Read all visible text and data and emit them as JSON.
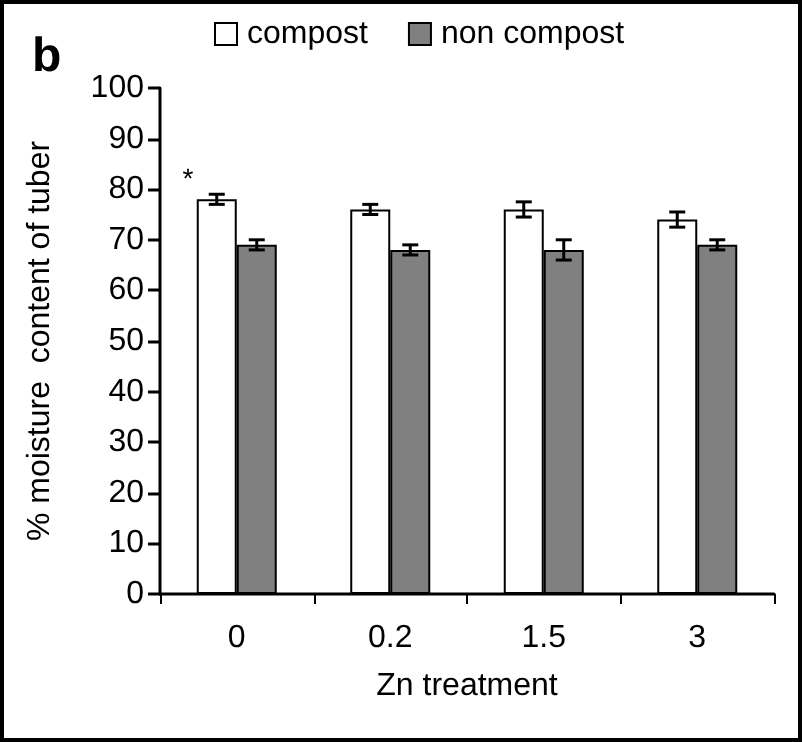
{
  "chart_data": {
    "type": "bar",
    "xlabel": "Zn treatment",
    "ylabel": "% moisture  content of tuber",
    "categories": [
      "0",
      "0.2",
      "1.5",
      "3"
    ],
    "series": [
      {
        "name": "compost",
        "color": "#ffffff",
        "values": [
          78,
          76,
          76,
          74
        ],
        "errors": [
          1,
          1,
          1.5,
          1.5
        ]
      },
      {
        "name": "non compost",
        "color": "#808080",
        "values": [
          69,
          68,
          68,
          69
        ],
        "errors": [
          1,
          1,
          2,
          1
        ]
      }
    ],
    "ylim": [
      0,
      100
    ],
    "yticks": [
      0,
      10,
      20,
      30,
      40,
      50,
      60,
      70,
      80,
      90,
      100
    ],
    "grid": false,
    "legend": "top",
    "annotations": [
      "b",
      "*"
    ]
  }
}
